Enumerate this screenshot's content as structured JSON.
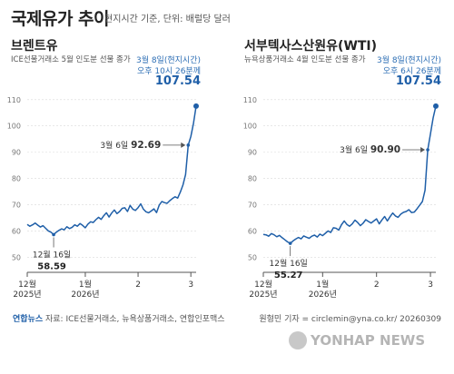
{
  "title": "국제유가 추이",
  "subtitle": "현지시간 기준, 단위: 배럴당 달러",
  "source": "자료: ICE선물거래소, 뉴욕상품거래소, 연합인포맥스",
  "source_logo": "연합뉴스",
  "credit": "원형민 기자 = circlemin@yna.co.kr/ 20260309",
  "watermark": "YONHAP NEWS",
  "chart_data": [
    {
      "type": "line",
      "name": "브렌트유",
      "subtitle": "ICE선물거래소 5월 인도분 선물 종가",
      "y_ticks": [
        50,
        60,
        70,
        80,
        90,
        100,
        110
      ],
      "ylim": [
        47,
        112
      ],
      "x_tick_labels": [
        [
          "12월",
          "2025년"
        ],
        [
          "1월",
          "2026년"
        ],
        [
          "2",
          ""
        ],
        [
          "3",
          ""
        ]
      ],
      "x_tick_days": [
        0,
        22,
        42,
        62
      ],
      "series": [
        {
          "color": "#1f5fa8",
          "x": [
            0,
            1,
            2,
            3,
            4,
            5,
            6,
            7,
            8,
            9,
            10,
            11,
            12,
            13,
            14,
            15,
            16,
            17,
            18,
            19,
            20,
            21,
            22,
            23,
            24,
            25,
            26,
            27,
            28,
            29,
            30,
            31,
            32,
            33,
            34,
            35,
            36,
            37,
            38,
            39,
            40,
            41,
            42,
            43,
            44,
            45,
            46,
            47,
            48,
            49,
            50,
            51,
            52,
            53,
            54,
            55,
            56,
            57,
            58,
            59,
            60,
            61,
            62,
            63,
            64
          ],
          "values": [
            62.5,
            61.8,
            62.3,
            63.0,
            62.2,
            61.5,
            62.0,
            61.0,
            60.0,
            59.5,
            58.59,
            59.5,
            60.2,
            60.8,
            60.4,
            61.6,
            60.9,
            61.4,
            62.3,
            61.8,
            62.8,
            62.1,
            61.2,
            62.6,
            63.5,
            63.2,
            64.3,
            65.2,
            64.4,
            65.8,
            66.9,
            65.3,
            66.8,
            68.0,
            66.6,
            67.4,
            68.6,
            68.8,
            67.4,
            69.7,
            68.3,
            67.8,
            68.9,
            70.3,
            68.3,
            67.3,
            66.9,
            67.6,
            68.4,
            67.0,
            69.8,
            71.2,
            70.8,
            70.5,
            71.5,
            72.3,
            73.0,
            72.5,
            74.8,
            77.5,
            81.5,
            92.69,
            96.0,
            101.0,
            107.54
          ]
        }
      ],
      "annotations": [
        {
          "label": "12월 16일",
          "value": "58.59",
          "x": 10
        },
        {
          "label": "3월 6일",
          "value": "92.69",
          "x": 61
        }
      ],
      "latest": {
        "label1": "3월 8일(현지시간)",
        "label2": "오후 10시 26분께",
        "value": "107.54"
      }
    },
    {
      "type": "line",
      "name": "서부텍사스산원유(WTI)",
      "subtitle": "뉴욕상품거래소 4월 인도분 선물 종가",
      "y_ticks": [
        50,
        60,
        70,
        80,
        90,
        100,
        110
      ],
      "ylim": [
        47,
        112
      ],
      "x_tick_labels": [
        [
          "12월",
          "2025년"
        ],
        [
          "1월",
          "2026년"
        ],
        [
          "2",
          ""
        ],
        [
          "3",
          ""
        ]
      ],
      "x_tick_days": [
        0,
        22,
        42,
        62
      ],
      "series": [
        {
          "color": "#1f5fa8",
          "x": [
            0,
            1,
            2,
            3,
            4,
            5,
            6,
            7,
            8,
            9,
            10,
            11,
            12,
            13,
            14,
            15,
            16,
            17,
            18,
            19,
            20,
            21,
            22,
            23,
            24,
            25,
            26,
            27,
            28,
            29,
            30,
            31,
            32,
            33,
            34,
            35,
            36,
            37,
            38,
            39,
            40,
            41,
            42,
            43,
            44,
            45,
            46,
            47,
            48,
            49,
            50,
            51,
            52,
            53,
            54,
            55,
            56,
            57,
            58,
            59,
            60,
            61,
            62,
            63,
            64
          ],
          "values": [
            58.7,
            58.5,
            58.0,
            59.0,
            58.5,
            57.8,
            58.3,
            57.4,
            56.6,
            55.8,
            55.27,
            56.2,
            56.9,
            57.5,
            57.0,
            58.1,
            57.6,
            57.2,
            58.0,
            58.4,
            57.7,
            58.8,
            58.2,
            59.1,
            60.0,
            59.4,
            61.2,
            61.0,
            60.3,
            62.4,
            63.8,
            62.5,
            61.8,
            62.7,
            64.1,
            63.2,
            62.0,
            62.9,
            64.3,
            63.6,
            63.0,
            63.8,
            64.6,
            62.7,
            64.2,
            65.5,
            63.8,
            65.4,
            66.8,
            65.7,
            65.2,
            66.4,
            67.1,
            67.4,
            68.1,
            67.0,
            67.2,
            68.4,
            69.8,
            71.2,
            75.5,
            90.9,
            97.0,
            103.0,
            107.54
          ]
        }
      ],
      "annotations": [
        {
          "label": "12월 16일",
          "value": "55.27",
          "x": 10
        },
        {
          "label": "3월 6일",
          "value": "90.90",
          "x": 61
        }
      ],
      "latest": {
        "label1": "3월 8일(현지시간)",
        "label2": "오후 6시 26분께",
        "value": "107.54"
      }
    }
  ]
}
